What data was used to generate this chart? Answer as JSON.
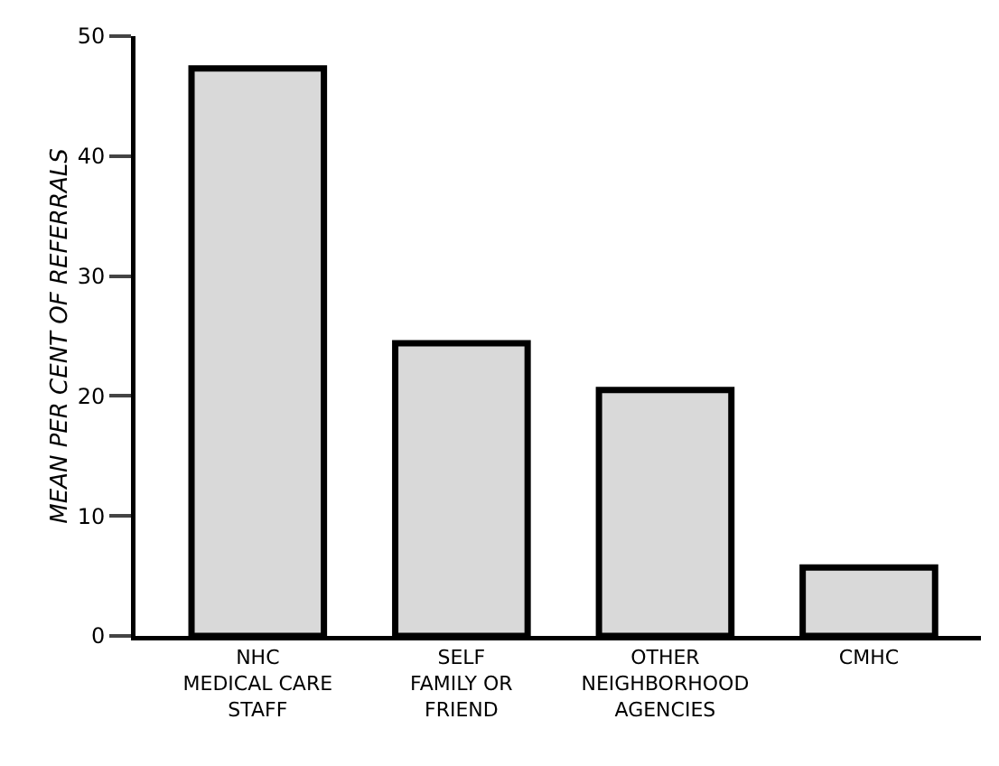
{
  "chart_data": {
    "type": "bar",
    "ylabel": "MEAN PER CENT OF REFERRALS",
    "categories": [
      "NHC\nMEDICAL CARE\nSTAFF",
      "SELF\nFAMILY OR\nFRIEND",
      "OTHER\nNEIGHBORHOOD\nAGENCIES",
      "CMHC"
    ],
    "values": [
      47.3,
      24.4,
      20.5,
      5.7
    ],
    "color": "#d9d9d9",
    "ylim": [
      0,
      50
    ],
    "yticks": [
      0,
      10,
      20,
      30,
      40,
      50
    ],
    "grid": false
  }
}
